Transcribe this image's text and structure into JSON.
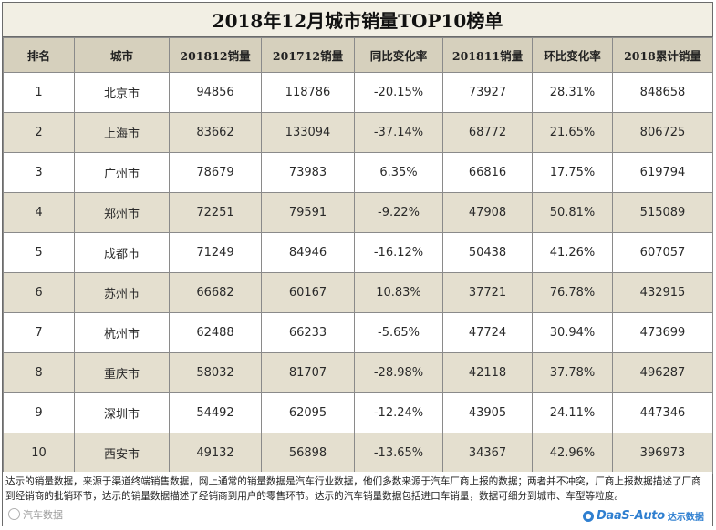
{
  "title": "2018年12月城市销量TOP10榜单",
  "headers": [
    "排名",
    "城市",
    "201812销量",
    "201712销量",
    "同比变化率",
    "201811销量",
    "环比变化率",
    "2018累计销量"
  ],
  "rows": [
    [
      "1",
      "北京市",
      "94856",
      "118786",
      "-20.15%",
      "73927",
      "28.31%",
      "848658"
    ],
    [
      "2",
      "上海市",
      "83662",
      "133094",
      "-37.14%",
      "68772",
      "21.65%",
      "806725"
    ],
    [
      "3",
      "广州市",
      "78679",
      "73983",
      "6.35%",
      "66816",
      "17.75%",
      "619794"
    ],
    [
      "4",
      "郑州市",
      "72251",
      "79591",
      "-9.22%",
      "47908",
      "50.81%",
      "515089"
    ],
    [
      "5",
      "成都市",
      "71249",
      "84946",
      "-16.12%",
      "50438",
      "41.26%",
      "607057"
    ],
    [
      "6",
      "苏州市",
      "66682",
      "60167",
      "10.83%",
      "37721",
      "76.78%",
      "432915"
    ],
    [
      "7",
      "杭州市",
      "62488",
      "66233",
      "-5.65%",
      "47724",
      "30.94%",
      "473699"
    ],
    [
      "8",
      "重庆市",
      "58032",
      "81707",
      "-28.98%",
      "42118",
      "37.78%",
      "496287"
    ],
    [
      "9",
      "深圳市",
      "54492",
      "62095",
      "-12.24%",
      "43905",
      "24.11%",
      "447346"
    ],
    [
      "10",
      "西安市",
      "49132",
      "56898",
      "-13.65%",
      "34367",
      "42.96%",
      "396973"
    ]
  ],
  "note": "达示的销量数据，来源于渠道终端销售数据，网上通常的销量数据是汽车行业数据，他们多数来源于汽车厂商上报的数据；两者并不冲突，厂商上报数据描述了厂商到经销商的批销环节，达示的销量数据描述了经销商到用户的零售环节。达示的汽车销量数据包括进口车销量，数据可细分到城市、车型等粒度。",
  "watermark": "汽车数据",
  "brand": {
    "logo": "DaaS-Auto",
    "cn": "达示数据"
  },
  "colors": {
    "header_bg": "#d6d0bd",
    "band_bg": "#e4dfcf",
    "brand_blue": "#2f7fd0"
  }
}
